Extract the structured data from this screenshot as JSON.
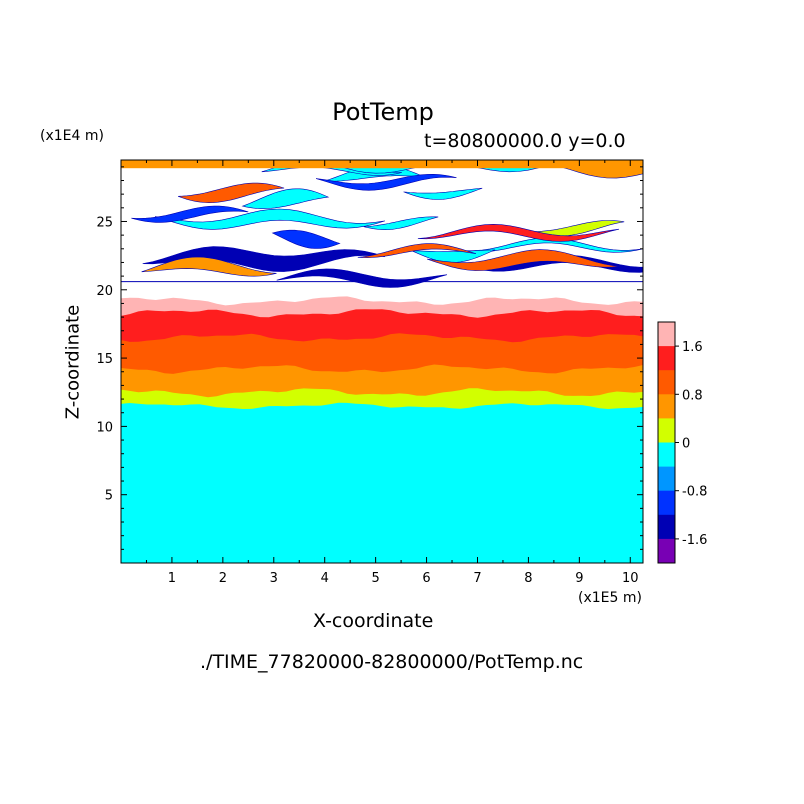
{
  "chart_data": {
    "type": "heatmap",
    "title": "PotTemp",
    "subtitle": "t=80800000.0 y=0.0",
    "xlabel": "X-coordinate",
    "ylabel": "Z-coordinate",
    "x_scale_label": "(x1E5 m)",
    "y_scale_label": "(x1E4 m)",
    "xlim": [
      0,
      10.25
    ],
    "ylim": [
      0,
      29.5
    ],
    "x_ticks": [
      "1",
      "2",
      "3",
      "4",
      "5",
      "6",
      "7",
      "8",
      "9",
      "10"
    ],
    "y_ticks": [
      "5",
      "10",
      "15",
      "20",
      "25"
    ],
    "colorbar": {
      "labels": [
        "1.6",
        "0.8",
        "0",
        "-0.8",
        "-1.6"
      ],
      "levels": [
        2.0,
        1.6,
        1.2,
        0.8,
        0.4,
        0.0,
        -0.4,
        -0.8,
        -1.2,
        -1.6,
        -2.0
      ],
      "colors": [
        "#ffb4b4",
        "#ff1e1e",
        "#ff5a00",
        "#ff9600",
        "#d2ff00",
        "#00ffff",
        "#0096ff",
        "#0032ff",
        "#0000b4",
        "#7800b4"
      ]
    },
    "layers": [
      {
        "z_range": [
          0,
          11.5
        ],
        "value_range": [
          -0.4,
          0.0
        ],
        "color": "#00ffff"
      },
      {
        "z_range": [
          11.5,
          12.5
        ],
        "value_range": [
          0.0,
          0.4
        ],
        "color": "#d2ff00"
      },
      {
        "z_range": [
          12.5,
          14.2
        ],
        "value_range": [
          0.4,
          0.8
        ],
        "color": "#ff9600"
      },
      {
        "z_range": [
          14.2,
          16.5
        ],
        "value_range": [
          0.8,
          1.2
        ],
        "color": "#ff5a00"
      },
      {
        "z_range": [
          16.5,
          18.3
        ],
        "value_range": [
          1.2,
          1.6
        ],
        "color": "#ff1e1e"
      },
      {
        "z_range": [
          18.3,
          19.2
        ],
        "value_range": [
          1.6,
          2.0
        ],
        "color": "#ffb4b4"
      },
      {
        "z_range": [
          20.5,
          29.5
        ],
        "value_range": [
          -2.0,
          2.0
        ],
        "color": "mixed banded layers"
      }
    ]
  },
  "footer": {
    "source_file": "./TIME_77820000-82800000/PotTemp.nc"
  }
}
